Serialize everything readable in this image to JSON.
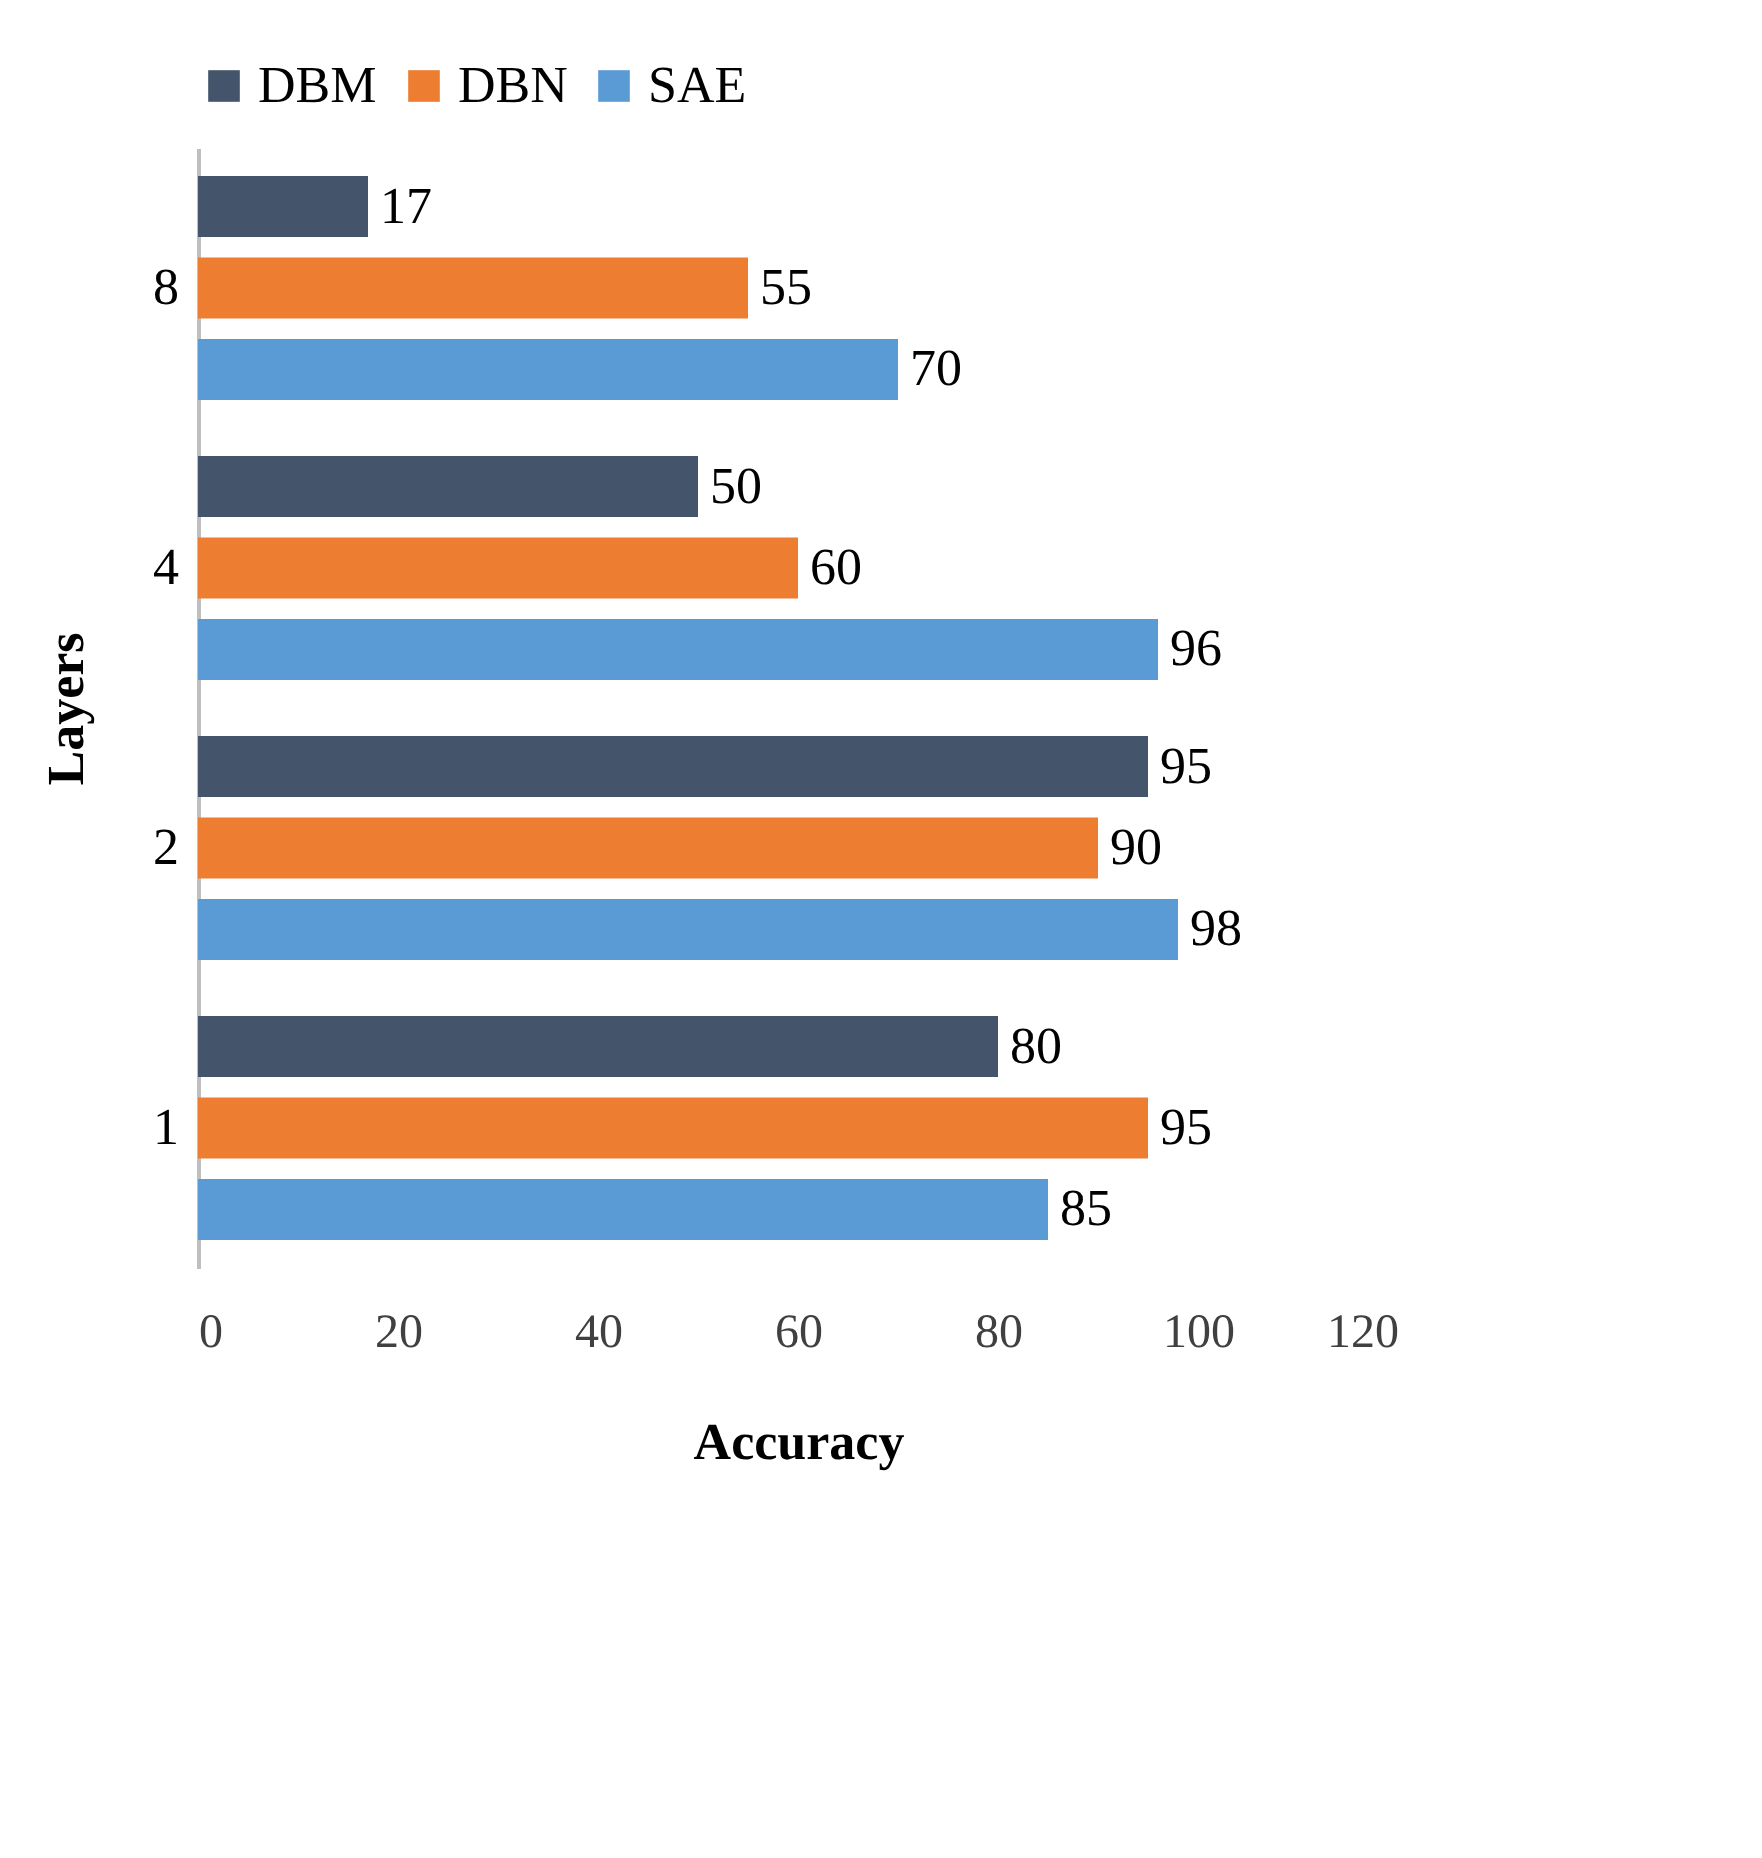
{
  "chart_data": {
    "type": "bar",
    "orientation": "horizontal",
    "categories": [
      "8",
      "4",
      "2",
      "1"
    ],
    "series": [
      {
        "name": "DBM",
        "color": "#44546a",
        "values": [
          17,
          50,
          95,
          80
        ]
      },
      {
        "name": "DBN",
        "color": "#ed7d31",
        "values": [
          55,
          60,
          90,
          95
        ]
      },
      {
        "name": "SAE",
        "color": "#5b9bd5",
        "values": [
          70,
          96,
          98,
          85
        ]
      }
    ],
    "xlabel": "Accuracy",
    "ylabel": "Layers",
    "xlim": [
      0,
      120
    ],
    "xticks": [
      0,
      20,
      40,
      60,
      80,
      100,
      120
    ],
    "data_labels": true,
    "legend": "top",
    "grid": false
  }
}
